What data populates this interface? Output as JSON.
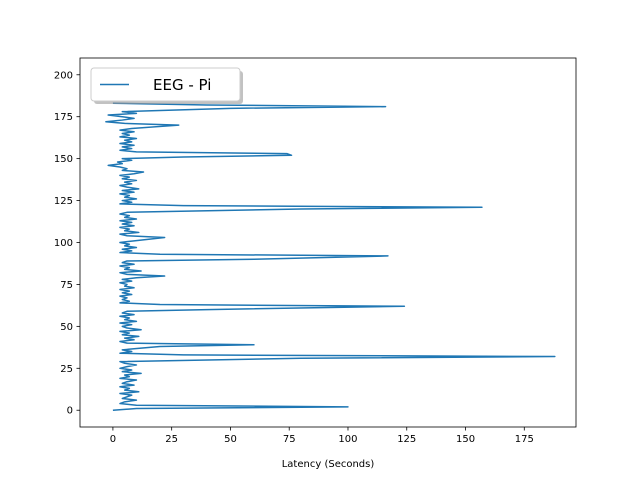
{
  "chart_data": {
    "type": "line",
    "title": "",
    "xlabel": "Latency (Seconds)",
    "ylabel": "",
    "xlim": [
      -14,
      197
    ],
    "ylim": [
      -10,
      210
    ],
    "xticks": [
      0,
      25,
      50,
      75,
      100,
      125,
      150,
      175
    ],
    "yticks": [
      0,
      25,
      50,
      75,
      100,
      125,
      150,
      175,
      200
    ],
    "grid": false,
    "legend_position": "upper-left",
    "series": [
      {
        "name": "EEG - Pi",
        "color": "#1f77b4",
        "points": [
          [
            0,
            0
          ],
          [
            10,
            1
          ],
          [
            100,
            2
          ],
          [
            10,
            3
          ],
          [
            3,
            4
          ],
          [
            5,
            5
          ],
          [
            10,
            6
          ],
          [
            4,
            7
          ],
          [
            6,
            8
          ],
          [
            8,
            9
          ],
          [
            3,
            10
          ],
          [
            11,
            11
          ],
          [
            5,
            12
          ],
          [
            7,
            13
          ],
          [
            3,
            14
          ],
          [
            9,
            15
          ],
          [
            4,
            16
          ],
          [
            6,
            17
          ],
          [
            10,
            18
          ],
          [
            3,
            19
          ],
          [
            7,
            20
          ],
          [
            5,
            21
          ],
          [
            12,
            22
          ],
          [
            4,
            23
          ],
          [
            8,
            24
          ],
          [
            3,
            25
          ],
          [
            6,
            26
          ],
          [
            10,
            27
          ],
          [
            5,
            28
          ],
          [
            3,
            29
          ],
          [
            80,
            31
          ],
          [
            188,
            32
          ],
          [
            30,
            33
          ],
          [
            3,
            34
          ],
          [
            8,
            35
          ],
          [
            4,
            36
          ],
          [
            12,
            37
          ],
          [
            20,
            38
          ],
          [
            60,
            39
          ],
          [
            6,
            40
          ],
          [
            3,
            41
          ],
          [
            9,
            42
          ],
          [
            5,
            43
          ],
          [
            11,
            44
          ],
          [
            4,
            45
          ],
          [
            7,
            46
          ],
          [
            3,
            47
          ],
          [
            12,
            48
          ],
          [
            6,
            49
          ],
          [
            4,
            50
          ],
          [
            8,
            51
          ],
          [
            3,
            52
          ],
          [
            10,
            53
          ],
          [
            5,
            54
          ],
          [
            7,
            55
          ],
          [
            3,
            56
          ],
          [
            9,
            57
          ],
          [
            4,
            58
          ],
          [
            6,
            59
          ],
          [
            40,
            60
          ],
          [
            124,
            62
          ],
          [
            20,
            63
          ],
          [
            3,
            64
          ],
          [
            7,
            65
          ],
          [
            4,
            66
          ],
          [
            6,
            67
          ],
          [
            3,
            68
          ],
          [
            8,
            69
          ],
          [
            4,
            70
          ],
          [
            7,
            71
          ],
          [
            3,
            72
          ],
          [
            9,
            73
          ],
          [
            5,
            74
          ],
          [
            6,
            75
          ],
          [
            3,
            76
          ],
          [
            8,
            77
          ],
          [
            4,
            78
          ],
          [
            10,
            79
          ],
          [
            22,
            80
          ],
          [
            6,
            81
          ],
          [
            3,
            82
          ],
          [
            12,
            83
          ],
          [
            5,
            84
          ],
          [
            7,
            85
          ],
          [
            3,
            86
          ],
          [
            9,
            87
          ],
          [
            4,
            88
          ],
          [
            6,
            89
          ],
          [
            60,
            90
          ],
          [
            117,
            92
          ],
          [
            20,
            93
          ],
          [
            3,
            94
          ],
          [
            8,
            95
          ],
          [
            4,
            96
          ],
          [
            10,
            97
          ],
          [
            5,
            98
          ],
          [
            7,
            99
          ],
          [
            3,
            100
          ],
          [
            9,
            101
          ],
          [
            22,
            103
          ],
          [
            6,
            104
          ],
          [
            3,
            105
          ],
          [
            11,
            106
          ],
          [
            5,
            107
          ],
          [
            7,
            108
          ],
          [
            3,
            109
          ],
          [
            9,
            110
          ],
          [
            4,
            111
          ],
          [
            8,
            112
          ],
          [
            3,
            113
          ],
          [
            10,
            114
          ],
          [
            5,
            115
          ],
          [
            7,
            116
          ],
          [
            3,
            117
          ],
          [
            6,
            118
          ],
          [
            80,
            120
          ],
          [
            157,
            121
          ],
          [
            30,
            122
          ],
          [
            3,
            123
          ],
          [
            8,
            124
          ],
          [
            4,
            125
          ],
          [
            10,
            126
          ],
          [
            5,
            127
          ],
          [
            7,
            128
          ],
          [
            3,
            129
          ],
          [
            9,
            130
          ],
          [
            4,
            131
          ],
          [
            11,
            132
          ],
          [
            6,
            133
          ],
          [
            3,
            134
          ],
          [
            8,
            135
          ],
          [
            5,
            136
          ],
          [
            10,
            137
          ],
          [
            4,
            138
          ],
          [
            7,
            139
          ],
          [
            3,
            140
          ],
          [
            9,
            141
          ],
          [
            13,
            142
          ],
          [
            4,
            143
          ],
          [
            6,
            144
          ],
          [
            3,
            145
          ],
          [
            -2,
            146
          ],
          [
            4,
            147
          ],
          [
            2,
            148
          ],
          [
            8,
            149
          ],
          [
            4,
            150
          ],
          [
            30,
            151
          ],
          [
            76,
            152
          ],
          [
            74,
            153
          ],
          [
            10,
            154
          ],
          [
            3,
            155
          ],
          [
            8,
            156
          ],
          [
            4,
            157
          ],
          [
            9,
            158
          ],
          [
            3,
            159
          ],
          [
            8,
            160
          ],
          [
            5,
            161
          ],
          [
            10,
            162
          ],
          [
            3,
            163
          ],
          [
            7,
            164
          ],
          [
            4,
            165
          ],
          [
            9,
            166
          ],
          [
            3,
            167
          ],
          [
            8,
            168
          ],
          [
            28,
            170
          ],
          [
            5,
            171
          ],
          [
            -3,
            172
          ],
          [
            4,
            173
          ],
          [
            9,
            174
          ],
          [
            4,
            175
          ],
          [
            -2,
            176
          ],
          [
            10,
            177
          ],
          [
            4,
            178
          ],
          [
            50,
            180
          ],
          [
            116,
            181
          ],
          [
            40,
            182
          ],
          [
            0,
            183
          ]
        ]
      }
    ]
  }
}
